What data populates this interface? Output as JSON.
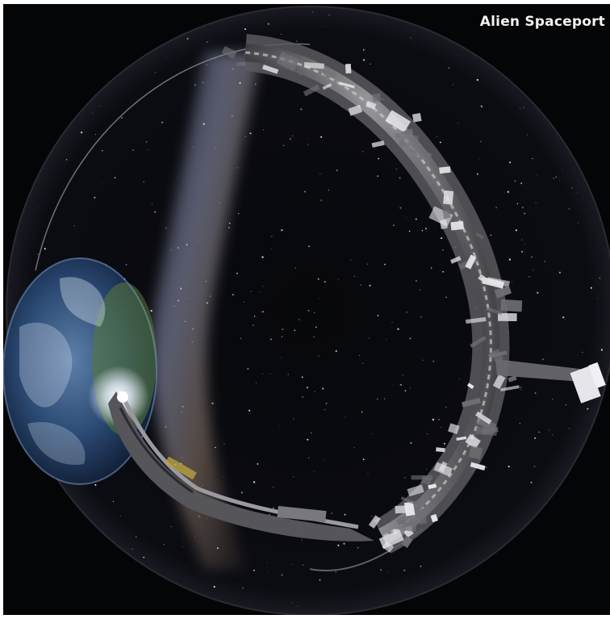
{
  "overlay": {
    "title": "Alien Spaceport"
  },
  "scene": {
    "kind": "fisheye full-dome render",
    "elements": [
      "milky-way",
      "earth",
      "ring-space-station",
      "starship"
    ],
    "colors": {
      "space": "#040507",
      "milky_way": "#a8a0b8",
      "earth_ocean": "#1e3a66",
      "earth_land": "#5a7a3a",
      "station_metal": "#8c8c8c",
      "frame": "#ffffff"
    }
  }
}
